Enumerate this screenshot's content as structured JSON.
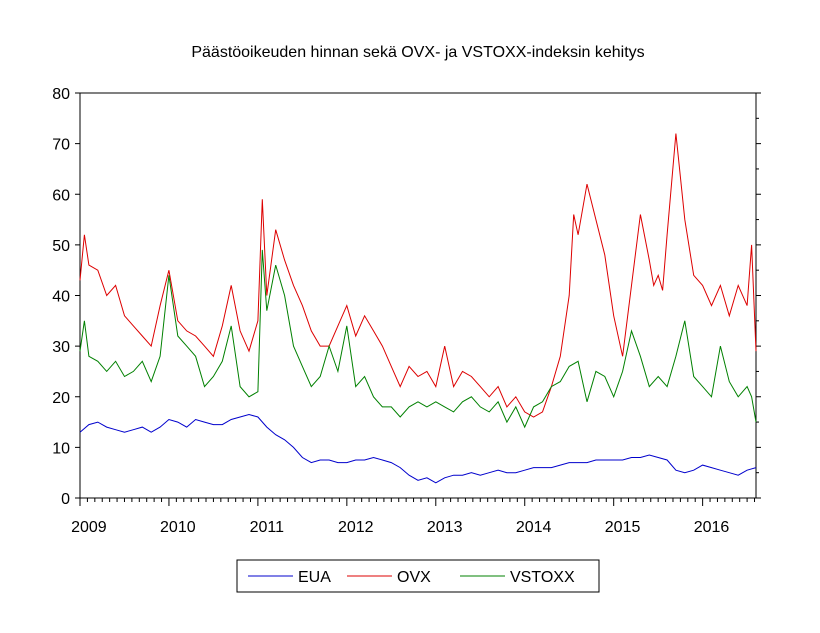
{
  "chart_data": {
    "type": "line",
    "title": "Päästöoikeuden hinnan sekä OVX- ja VSTOXX-indeksin kehitys",
    "xlabel": "",
    "ylabel": "",
    "ylim": [
      0,
      80
    ],
    "yticks": [
      0,
      10,
      20,
      30,
      40,
      50,
      60,
      70,
      80
    ],
    "xlim": [
      2009.0,
      2016.6
    ],
    "xtick_labels": [
      "2009",
      "2010",
      "2011",
      "2012",
      "2013",
      "2014",
      "2015",
      "2016"
    ],
    "grid": false,
    "legend_position": "bottom",
    "series": [
      {
        "name": "EUA",
        "color": "#0000cc",
        "x": [
          2009.0,
          2009.1,
          2009.2,
          2009.3,
          2009.4,
          2009.5,
          2009.6,
          2009.7,
          2009.8,
          2009.9,
          2010.0,
          2010.1,
          2010.2,
          2010.3,
          2010.4,
          2010.5,
          2010.6,
          2010.7,
          2010.8,
          2010.9,
          2011.0,
          2011.1,
          2011.2,
          2011.3,
          2011.4,
          2011.5,
          2011.6,
          2011.7,
          2011.8,
          2011.9,
          2012.0,
          2012.1,
          2012.2,
          2012.3,
          2012.4,
          2012.5,
          2012.6,
          2012.7,
          2012.8,
          2012.9,
          2013.0,
          2013.1,
          2013.2,
          2013.3,
          2013.4,
          2013.5,
          2013.6,
          2013.7,
          2013.8,
          2013.9,
          2014.0,
          2014.1,
          2014.2,
          2014.3,
          2014.4,
          2014.5,
          2014.6,
          2014.7,
          2014.8,
          2014.9,
          2015.0,
          2015.1,
          2015.2,
          2015.3,
          2015.4,
          2015.5,
          2015.6,
          2015.7,
          2015.8,
          2015.9,
          2016.0,
          2016.1,
          2016.2,
          2016.3,
          2016.4,
          2016.5,
          2016.6
        ],
        "values": [
          13,
          14.5,
          15,
          14,
          13.5,
          13,
          13.5,
          14,
          13,
          14,
          15.5,
          15,
          14,
          15.5,
          15,
          14.5,
          14.5,
          15.5,
          16,
          16.5,
          16,
          14,
          12.5,
          11.5,
          10,
          8,
          7,
          7.5,
          7.5,
          7,
          7,
          7.5,
          7.5,
          8,
          7.5,
          7,
          6,
          4.5,
          3.5,
          4,
          3,
          4,
          4.5,
          4.5,
          5,
          4.5,
          5,
          5.5,
          5,
          5,
          5.5,
          6,
          6,
          6,
          6.5,
          7,
          7,
          7,
          7.5,
          7.5,
          7.5,
          7.5,
          8,
          8,
          8.5,
          8,
          7.5,
          5.5,
          5,
          5.5,
          6.5,
          6,
          5.5,
          5,
          4.5,
          5.5,
          6
        ]
      },
      {
        "name": "OVX",
        "color": "#dd0000",
        "x": [
          2009.0,
          2009.05,
          2009.1,
          2009.2,
          2009.3,
          2009.4,
          2009.5,
          2009.6,
          2009.7,
          2009.8,
          2009.9,
          2010.0,
          2010.1,
          2010.2,
          2010.3,
          2010.4,
          2010.5,
          2010.6,
          2010.7,
          2010.8,
          2010.9,
          2011.0,
          2011.05,
          2011.1,
          2011.2,
          2011.3,
          2011.4,
          2011.5,
          2011.6,
          2011.7,
          2011.8,
          2011.9,
          2012.0,
          2012.1,
          2012.2,
          2012.3,
          2012.4,
          2012.5,
          2012.6,
          2012.7,
          2012.8,
          2012.9,
          2013.0,
          2013.1,
          2013.2,
          2013.3,
          2013.4,
          2013.5,
          2013.6,
          2013.7,
          2013.8,
          2013.9,
          2014.0,
          2014.1,
          2014.2,
          2014.3,
          2014.4,
          2014.5,
          2014.55,
          2014.6,
          2014.7,
          2014.8,
          2014.9,
          2015.0,
          2015.1,
          2015.2,
          2015.3,
          2015.4,
          2015.45,
          2015.5,
          2015.55,
          2015.6,
          2015.7,
          2015.8,
          2015.9,
          2016.0,
          2016.1,
          2016.2,
          2016.3,
          2016.4,
          2016.5,
          2016.55,
          2016.6
        ],
        "values": [
          43,
          52,
          46,
          45,
          40,
          42,
          36,
          34,
          32,
          30,
          38,
          45,
          35,
          33,
          32,
          30,
          28,
          34,
          42,
          33,
          29,
          35,
          59,
          40,
          53,
          47,
          42,
          38,
          33,
          30,
          30,
          34,
          38,
          32,
          36,
          33,
          30,
          26,
          22,
          26,
          24,
          25,
          22,
          30,
          22,
          25,
          24,
          22,
          20,
          22,
          18,
          20,
          17,
          16,
          17,
          22,
          28,
          40,
          56,
          52,
          62,
          55,
          48,
          36,
          28,
          42,
          56,
          47,
          42,
          44,
          41,
          52,
          72,
          55,
          44,
          42,
          38,
          42,
          36,
          42,
          38,
          50,
          29
        ]
      },
      {
        "name": "VSTOXX",
        "color": "#008000",
        "x": [
          2009.0,
          2009.05,
          2009.1,
          2009.2,
          2009.3,
          2009.4,
          2009.5,
          2009.6,
          2009.7,
          2009.8,
          2009.9,
          2010.0,
          2010.1,
          2010.2,
          2010.3,
          2010.4,
          2010.5,
          2010.6,
          2010.7,
          2010.8,
          2010.9,
          2011.0,
          2011.05,
          2011.1,
          2011.2,
          2011.3,
          2011.4,
          2011.5,
          2011.6,
          2011.7,
          2011.8,
          2011.9,
          2012.0,
          2012.1,
          2012.2,
          2012.3,
          2012.4,
          2012.5,
          2012.6,
          2012.7,
          2012.8,
          2012.9,
          2013.0,
          2013.1,
          2013.2,
          2013.3,
          2013.4,
          2013.5,
          2013.6,
          2013.7,
          2013.8,
          2013.9,
          2014.0,
          2014.1,
          2014.2,
          2014.3,
          2014.4,
          2014.5,
          2014.6,
          2014.7,
          2014.8,
          2014.9,
          2015.0,
          2015.1,
          2015.2,
          2015.3,
          2015.4,
          2015.5,
          2015.6,
          2015.7,
          2015.8,
          2015.9,
          2016.0,
          2016.1,
          2016.2,
          2016.3,
          2016.4,
          2016.5,
          2016.55,
          2016.6
        ],
        "values": [
          29,
          35,
          28,
          27,
          25,
          27,
          24,
          25,
          27,
          23,
          28,
          44,
          32,
          30,
          28,
          22,
          24,
          27,
          34,
          22,
          20,
          21,
          49,
          37,
          46,
          40,
          30,
          26,
          22,
          24,
          30,
          25,
          34,
          22,
          24,
          20,
          18,
          18,
          16,
          18,
          19,
          18,
          19,
          18,
          17,
          19,
          20,
          18,
          17,
          19,
          15,
          18,
          14,
          18,
          19,
          22,
          23,
          26,
          27,
          19,
          25,
          24,
          20,
          25,
          33,
          28,
          22,
          24,
          22,
          28,
          35,
          24,
          22,
          20,
          30,
          23,
          20,
          22,
          20,
          15
        ]
      }
    ]
  }
}
